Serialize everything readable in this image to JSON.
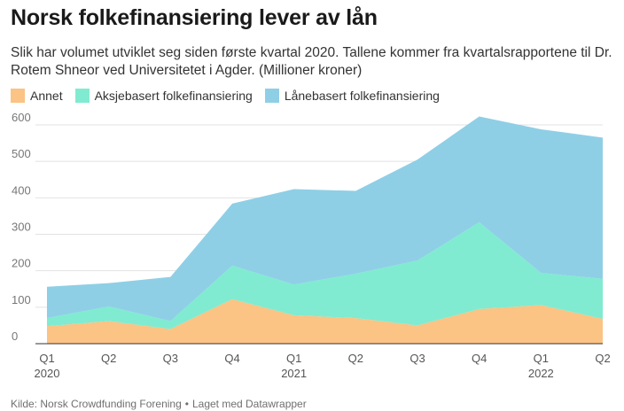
{
  "header": {
    "title": "Norsk folkefinansiering lever av lån",
    "subtitle": "Slik har volumet utviklet seg siden første kvartal 2020. Tallene kommer fra kvartalsrapportene til Dr. Rotem Shneor ved Universitetet i Agder. (Millioner kroner)"
  },
  "footer": {
    "source": "Kilde: Norsk Crowdfunding Forening",
    "separator": "•",
    "credit": "Laget med Datawrapper"
  },
  "chart_data": {
    "type": "area",
    "stacked": true,
    "categories": [
      "Q1 2020",
      "Q2",
      "Q3",
      "Q4",
      "Q1 2021",
      "Q2",
      "Q3",
      "Q4",
      "Q1 2022",
      "Q2"
    ],
    "x_tick_labels": [
      [
        "Q1",
        "2020"
      ],
      [
        "Q2",
        ""
      ],
      [
        "Q3",
        ""
      ],
      [
        "Q4",
        ""
      ],
      [
        "Q1",
        "2021"
      ],
      [
        "Q2",
        ""
      ],
      [
        "Q3",
        ""
      ],
      [
        "Q4",
        ""
      ],
      [
        "Q1",
        "2022"
      ],
      [
        "Q2",
        ""
      ]
    ],
    "ylim": [
      0,
      600
    ],
    "yticks": [
      0,
      100,
      200,
      300,
      400,
      500,
      600
    ],
    "grid": true,
    "legend_position": "top",
    "series": [
      {
        "name": "Annet",
        "color": "#fbc384",
        "values": [
          48,
          62,
          40,
          122,
          78,
          70,
          50,
          95,
          106,
          68
        ]
      },
      {
        "name": "Aksjebasert folkefinansiering",
        "color": "#80ebd0",
        "values": [
          22,
          40,
          22,
          92,
          84,
          122,
          178,
          238,
          88,
          110
        ]
      },
      {
        "name": "Lånebasert folkefinansiering",
        "color": "#8ecfe6",
        "values": [
          86,
          64,
          121,
          170,
          262,
          227,
          277,
          290,
          394,
          387
        ]
      }
    ]
  }
}
